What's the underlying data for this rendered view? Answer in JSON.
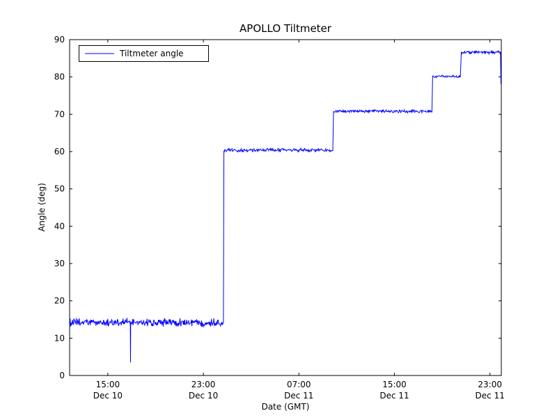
{
  "chart_data": {
    "type": "line",
    "title": "APOLLO Tiltmeter",
    "xlabel": "Date (GMT)",
    "ylabel": "Angle (deg)",
    "ylim": [
      0,
      90
    ],
    "xlim_hours": [
      11.8,
      47.95
    ],
    "grid": false,
    "y_ticks": [
      0,
      10,
      20,
      30,
      40,
      50,
      60,
      70,
      80,
      90
    ],
    "x_ticks": [
      {
        "t": 15,
        "time": "15:00",
        "date": "Dec 10"
      },
      {
        "t": 23,
        "time": "23:00",
        "date": "Dec 10"
      },
      {
        "t": 31,
        "time": "07:00",
        "date": "Dec 11"
      },
      {
        "t": 39,
        "time": "15:00",
        "date": "Dec 11"
      },
      {
        "t": 47,
        "time": "23:00",
        "date": "Dec 11"
      }
    ],
    "legend": {
      "position": "upper left",
      "entries": [
        {
          "label": "Tiltmeter angle",
          "color": "#0000ff"
        }
      ]
    },
    "series": [
      {
        "name": "Tiltmeter angle",
        "color": "#0000ff",
        "line_width": 1,
        "segments": [
          {
            "t_start": 11.8,
            "t_end": 24.68,
            "level": 14.2,
            "noise": 0.8
          },
          {
            "t_start": 24.72,
            "t_end": 33.85,
            "level": 60.4,
            "noise": 0.35
          },
          {
            "t_start": 33.9,
            "t_end": 42.15,
            "level": 70.8,
            "noise": 0.3
          },
          {
            "t_start": 42.2,
            "t_end": 44.55,
            "level": 80.1,
            "noise": 0.25
          },
          {
            "t_start": 44.6,
            "t_end": 47.9,
            "level": 86.6,
            "noise": 0.3
          }
        ],
        "events": [
          {
            "type": "spike",
            "t": 16.9,
            "value": 3.5
          },
          {
            "type": "drop_end",
            "t": 47.92,
            "value": 78
          }
        ]
      }
    ]
  }
}
